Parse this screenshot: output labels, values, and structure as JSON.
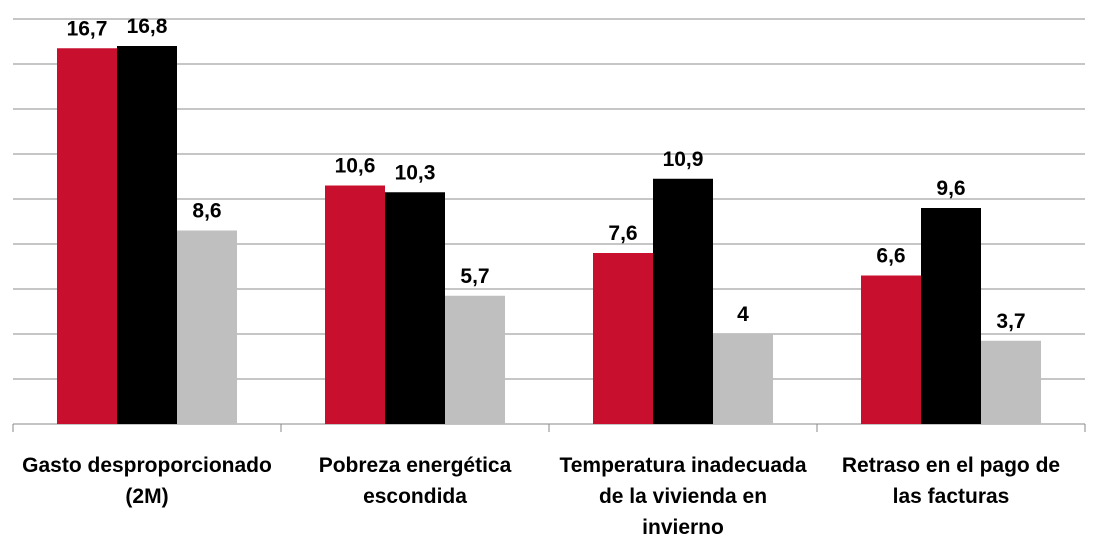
{
  "chart_data": {
    "type": "bar",
    "categories": [
      "Gasto desproporcionado (2M)",
      "Pobreza energética escondida",
      "Temperatura inadecuada de la vivienda en invierno",
      "Retraso en el pago de las facturas"
    ],
    "series": [
      {
        "color": "#c8102e",
        "values": [
          16.7,
          10.6,
          7.6,
          6.6
        ],
        "value_labels": [
          "16,7",
          "10,6",
          "7,6",
          "6,6"
        ]
      },
      {
        "color": "#000000",
        "values": [
          16.8,
          10.3,
          10.9,
          9.6
        ],
        "value_labels": [
          "16,8",
          "10,3",
          "10,9",
          "9,6"
        ]
      },
      {
        "color": "#bfbfbf",
        "values": [
          8.6,
          5.7,
          4,
          3.7
        ],
        "value_labels": [
          "8,6",
          "5,7",
          "4",
          "3,7"
        ]
      }
    ],
    "ylim": [
      0,
      18
    ],
    "yticks": [
      0,
      2,
      4,
      6,
      8,
      10,
      12,
      14,
      16,
      18
    ],
    "grid": true
  }
}
